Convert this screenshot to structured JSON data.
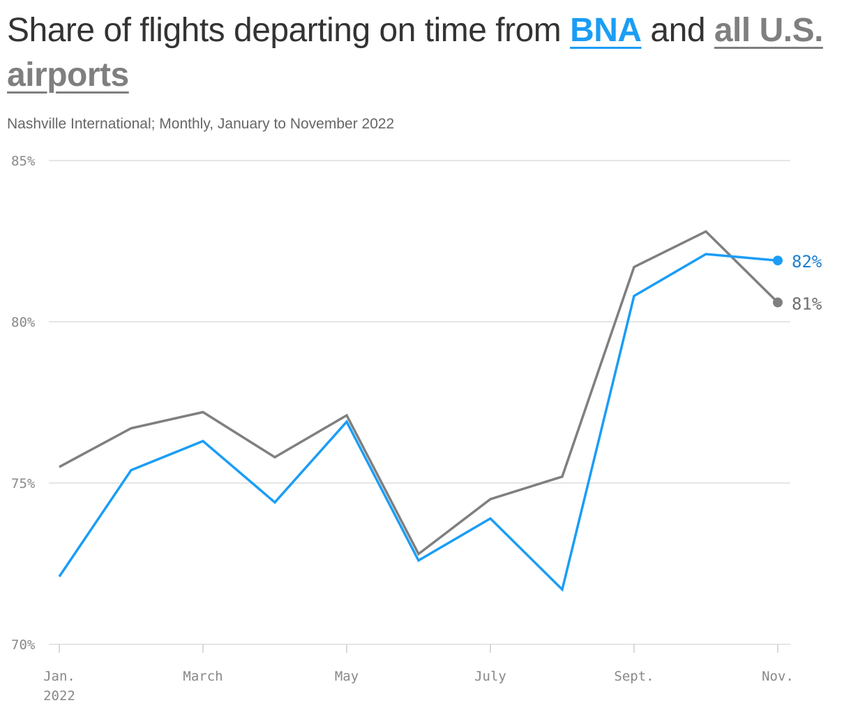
{
  "title": {
    "prefix": "Share of flights departing on time from ",
    "bna": "BNA",
    "middle": " and ",
    "all": "all U.S. airports"
  },
  "subtitle": "Nashville International; Monthly, January to November 2022",
  "colors": {
    "bna": "#1b9df5",
    "all_us": "#7f7f7f",
    "bna_label": "#1a7fd0",
    "all_us_label": "#6f6f6f",
    "grid": "#dddddd",
    "text": "#333333"
  },
  "chart_data": {
    "type": "line",
    "title": "Share of flights departing on time from BNA and all U.S. airports",
    "subtitle": "Nashville International; Monthly, January to November 2022",
    "x": [
      "2022-01",
      "2022-02",
      "2022-03",
      "2022-04",
      "2022-05",
      "2022-06",
      "2022-07",
      "2022-08",
      "2022-09",
      "2022-10",
      "2022-11"
    ],
    "x_tick_labels": [
      {
        "x": "2022-01",
        "lines": [
          "Jan.",
          "2022"
        ]
      },
      {
        "x": "2022-03",
        "lines": [
          "March"
        ]
      },
      {
        "x": "2022-05",
        "lines": [
          "May"
        ]
      },
      {
        "x": "2022-07",
        "lines": [
          "July"
        ]
      },
      {
        "x": "2022-09",
        "lines": [
          "Sept."
        ]
      },
      {
        "x": "2022-11",
        "lines": [
          "Nov."
        ]
      }
    ],
    "ylim": [
      70,
      85
    ],
    "y_ticks": [
      70,
      75,
      80,
      85
    ],
    "y_tick_labels": [
      "70%",
      "75%",
      "80%",
      "85%"
    ],
    "grid": true,
    "series": [
      {
        "name": "all U.S. airports",
        "key": "all_us",
        "values": [
          75.5,
          76.7,
          77.2,
          75.8,
          77.1,
          72.8,
          74.5,
          75.2,
          81.7,
          82.8,
          80.6
        ],
        "end_label": "81%"
      },
      {
        "name": "BNA",
        "key": "bna",
        "values": [
          72.1,
          75.4,
          76.3,
          74.4,
          76.9,
          72.6,
          73.9,
          71.7,
          80.8,
          82.1,
          81.9
        ],
        "end_label": "82%"
      }
    ]
  }
}
